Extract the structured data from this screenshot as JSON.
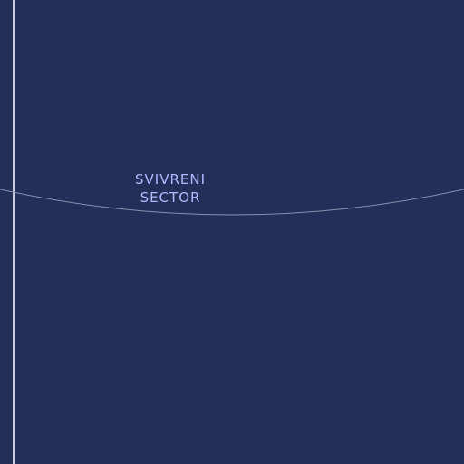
{
  "map": {
    "background_color": "#232f58",
    "sector_label": {
      "line1": "SVIVRENI",
      "line2": "SECTOR",
      "color": "#b4b8ff"
    },
    "boundary_line_color": "#8a8fb0",
    "grid_line_color": "#c8ccdc"
  }
}
